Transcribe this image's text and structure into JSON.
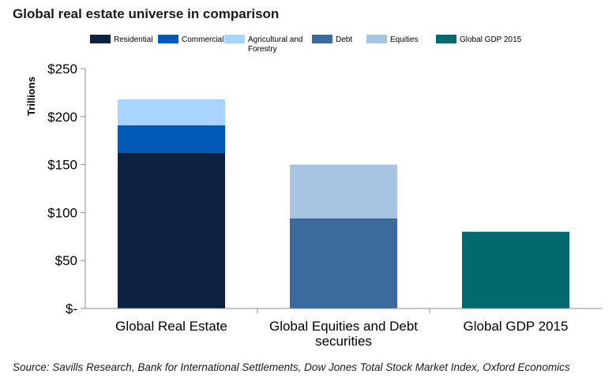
{
  "title": "Global real estate universe in comparison",
  "source": "Source: Savills Research, Bank for International Settlements, Dow Jones Total Stock Market Index, Oxford Economics",
  "chart_data": {
    "type": "bar",
    "stacked": true,
    "title": "Global real estate universe in comparison",
    "ylabel": "Trillions",
    "xlabel": "",
    "ylim": [
      0,
      250
    ],
    "yticks": [
      0,
      50,
      100,
      150,
      200,
      250
    ],
    "ytick_labels": [
      "$-",
      "$50",
      "$100",
      "$150",
      "$200",
      "$250"
    ],
    "categories": [
      [
        "Global Real Estate"
      ],
      [
        "Global Equities and Debt",
        "securities"
      ],
      [
        "Global GDP 2015"
      ]
    ],
    "series": [
      {
        "name": "Residential",
        "color": "#0d2240",
        "values": [
          162,
          0,
          0
        ]
      },
      {
        "name": "Commercial",
        "color": "#005ab5",
        "values": [
          29,
          0,
          0
        ]
      },
      {
        "name": "Agricultural and Forestry",
        "legend_lines": [
          "Agricultural and",
          "Forestry"
        ],
        "color": "#a9d4ff",
        "values": [
          27,
          0,
          0
        ]
      },
      {
        "name": "Debt",
        "color": "#3b6b9e",
        "values": [
          0,
          94,
          0
        ]
      },
      {
        "name": "Equities",
        "color": "#a7c4e2",
        "values": [
          0,
          56,
          0
        ]
      },
      {
        "name": "Global GDP 2015",
        "color": "#02696e",
        "values": [
          0,
          0,
          80
        ]
      }
    ],
    "legend_position": "top",
    "grid": false
  }
}
